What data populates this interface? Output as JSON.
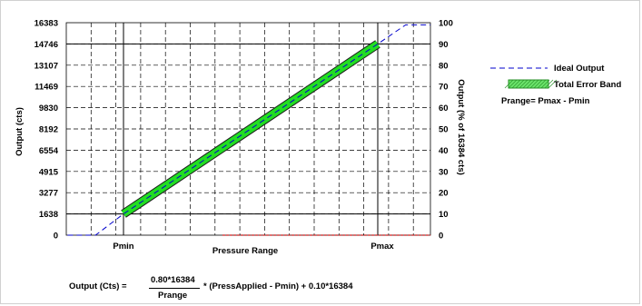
{
  "chart_data": {
    "type": "line",
    "title": "",
    "xlabel": "Pressure Range",
    "ylabel": "Output (cts)",
    "y2label": "Output (% of 16384 cts)",
    "x_ticks": [
      "Pmin",
      "Pmax"
    ],
    "y_ticks": [
      "0",
      "1638",
      "3277",
      "4915",
      "6554",
      "8192",
      "9830",
      "11469",
      "13107",
      "14746",
      "16383"
    ],
    "y_values": [
      0,
      1638,
      3277,
      4915,
      6554,
      8192,
      9830,
      11469,
      13107,
      14746,
      16383
    ],
    "y2_ticks": [
      "0",
      "10",
      "20",
      "30",
      "40",
      "50",
      "60",
      "70",
      "80",
      "90",
      "100"
    ],
    "ylim": [
      0,
      16383
    ],
    "y2lim": [
      0,
      100
    ],
    "grid": true,
    "legend_position": "right",
    "series": [
      {
        "name": "Ideal Output",
        "style": "dashed",
        "color": "#0000cc",
        "points": [
          [
            -0.22,
            0
          ],
          [
            -0.11,
            0
          ],
          [
            0,
            1638
          ],
          [
            1,
            14746
          ],
          [
            1.11,
            16220
          ],
          [
            1.21,
            16220
          ]
        ]
      },
      {
        "name": "Total Error Band",
        "style": "band",
        "color": "#22dd22",
        "points": [
          [
            0,
            1638
          ],
          [
            1,
            14746
          ]
        ]
      }
    ],
    "legend_note": "Prange= Pmax - Pmin"
  },
  "formula": {
    "left": "Output (Cts) =",
    "numerator": "0.80*16384",
    "denominator": "Prange",
    "right": "* (PressApplied - Pmin) + 0.10*16384"
  },
  "colors": {
    "ideal": "#0000cc",
    "band": "#22dd22",
    "baseline": "#cc2222"
  }
}
